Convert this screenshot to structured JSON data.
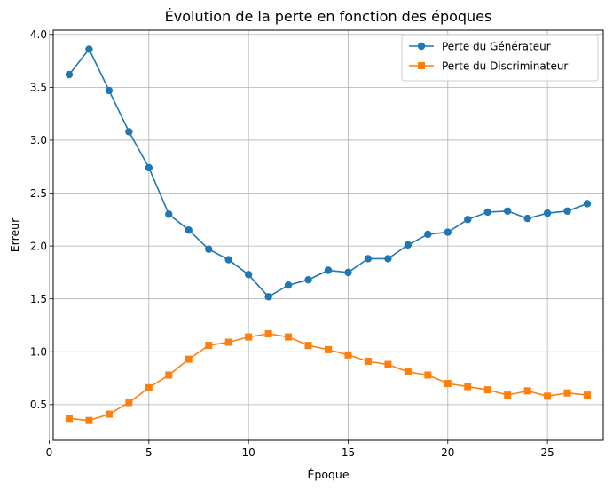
{
  "chart_data": {
    "type": "line",
    "title": "Évolution de la perte en fonction des époques",
    "xlabel": "Époque",
    "ylabel": "Erreur",
    "xlim": [
      0.2,
      27.8
    ],
    "ylim": [
      0.163,
      4.04
    ],
    "xticks": [
      0,
      5,
      10,
      15,
      20,
      25
    ],
    "yticks": [
      0.5,
      1.0,
      1.5,
      2.0,
      2.5,
      3.0,
      3.5,
      4.0
    ],
    "ytick_labels": [
      "0.5",
      "1.0",
      "1.5",
      "2.0",
      "2.5",
      "3.0",
      "3.5",
      "4.0"
    ],
    "grid": true,
    "legend_position": "top-right",
    "x": [
      1,
      2,
      3,
      4,
      5,
      6,
      7,
      8,
      9,
      10,
      11,
      12,
      13,
      14,
      15,
      16,
      17,
      18,
      19,
      20,
      21,
      22,
      23,
      24,
      25,
      26,
      27
    ],
    "series": [
      {
        "name": "Perte du Générateur",
        "color": "#1f77b4",
        "marker": "circle",
        "values": [
          3.62,
          3.86,
          3.47,
          3.08,
          2.74,
          2.3,
          2.15,
          1.97,
          1.87,
          1.73,
          1.52,
          1.63,
          1.68,
          1.77,
          1.75,
          1.88,
          1.88,
          2.01,
          2.11,
          2.13,
          2.25,
          2.32,
          2.33,
          2.26,
          2.31,
          2.33,
          2.4
        ]
      },
      {
        "name": "Perte du Discriminateur",
        "color": "#ff7f0e",
        "marker": "square",
        "values": [
          0.37,
          0.35,
          0.41,
          0.52,
          0.66,
          0.78,
          0.93,
          1.06,
          1.09,
          1.14,
          1.17,
          1.14,
          1.06,
          1.02,
          0.97,
          0.91,
          0.88,
          0.81,
          0.78,
          0.7,
          0.67,
          0.64,
          0.59,
          0.63,
          0.58,
          0.61,
          0.59
        ]
      }
    ]
  }
}
